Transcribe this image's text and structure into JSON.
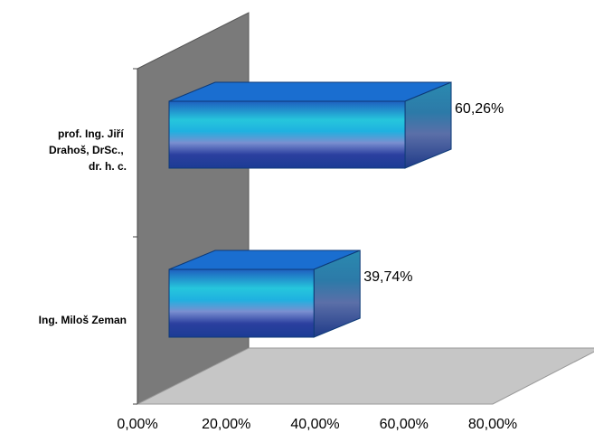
{
  "chart_data": {
    "type": "bar",
    "orientation": "horizontal",
    "style": "3d",
    "categories": [
      [
        "prof. Ing. Jiří",
        "Drahoš, DrSc.,",
        "dr. h. c."
      ],
      [
        "Ing. Miloš Zeman"
      ]
    ],
    "values": [
      60.26,
      39.74
    ],
    "data_labels": [
      "60,26%",
      "39,74%"
    ],
    "x_ticks": [
      0,
      20,
      40,
      60,
      80
    ],
    "x_tick_labels": [
      "0,00%",
      "20,00%",
      "40,00%",
      "60,00%",
      "80,00%"
    ],
    "xlim": [
      0,
      80
    ],
    "title": "",
    "xlabel": "",
    "ylabel": "",
    "grid": false,
    "colors": {
      "wall": "#7a7a7a",
      "floor": "#c4c4c4",
      "bar_top": "#1a6ed0",
      "bar_side": "#2a6fa8",
      "bar_front_stops": [
        "#1e5fbf",
        "#26c6dc",
        "#1fb1e0",
        "#7a8fd0",
        "#2b3f9f",
        "#1c3c95"
      ]
    }
  }
}
